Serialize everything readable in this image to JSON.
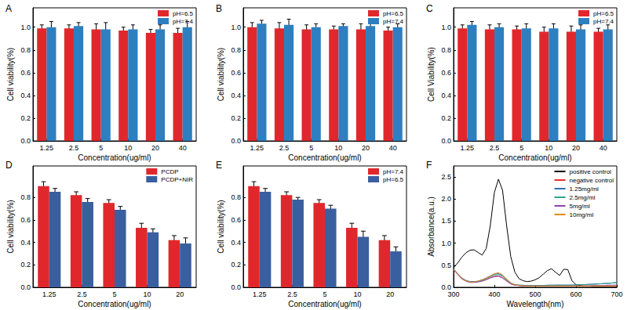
{
  "chart_data": [
    {
      "type": "bar",
      "title": "A",
      "x_label": "Concentration(ug/ml)",
      "y_label": "Cell viability(%)",
      "categories": [
        "1.25",
        "2.5",
        "5",
        "10",
        "20",
        "40"
      ],
      "series": [
        {
          "name": "pH=6.5",
          "color": "#e0282c",
          "values": [
            0.99,
            0.99,
            0.98,
            0.97,
            0.95,
            0.95
          ],
          "errors": [
            0.03,
            0.03,
            0.05,
            0.03,
            0.03,
            0.04
          ]
        },
        {
          "name": "pH=7.4",
          "color": "#2e7fc0",
          "values": [
            1.0,
            1.01,
            0.98,
            0.98,
            0.98,
            1.0
          ],
          "errors": [
            0.05,
            0.03,
            0.06,
            0.04,
            0.04,
            0.05
          ]
        }
      ],
      "ylim": [
        0,
        1.17
      ],
      "yticks": [
        {
          "value": 0,
          "label": "0.0"
        },
        0.2,
        0.4,
        0.6,
        0.8,
        {
          "value": 1,
          "label": "1.0"
        }
      ],
      "grid": false,
      "legend": "upper right"
    },
    {
      "type": "bar",
      "title": "B",
      "x_label": "Concentration(ug/ml)",
      "y_label": "Cell viability(%)",
      "categories": [
        "1.25",
        "2.5",
        "5",
        "10",
        "20",
        "40"
      ],
      "series": [
        {
          "name": "pH=6.5",
          "color": "#e0282c",
          "values": [
            1.0,
            0.99,
            0.98,
            0.98,
            0.98,
            0.97
          ],
          "errors": [
            0.04,
            0.05,
            0.04,
            0.03,
            0.05,
            0.03
          ]
        },
        {
          "name": "pH=7.4",
          "color": "#2e7fc0",
          "values": [
            1.03,
            1.02,
            1.0,
            1.01,
            1.01,
            1.0
          ],
          "errors": [
            0.03,
            0.05,
            0.03,
            0.02,
            0.03,
            0.03
          ]
        }
      ],
      "ylim": [
        0,
        1.17
      ],
      "yticks": [
        {
          "value": 0,
          "label": "0.0"
        },
        0.2,
        0.4,
        0.6,
        0.8,
        {
          "value": 1,
          "label": "1.0"
        }
      ],
      "grid": false,
      "legend": "upper right"
    },
    {
      "type": "bar",
      "title": "C",
      "x_label": "Concentration(ug/ml)",
      "y_label": "Cell Viability(%)",
      "categories": [
        "1.25",
        "2.5",
        "5",
        "10",
        "20",
        "40"
      ],
      "series": [
        {
          "name": "pH=6.5",
          "color": "#e0282c",
          "values": [
            0.99,
            0.98,
            0.98,
            0.96,
            0.96,
            0.96
          ],
          "errors": [
            0.03,
            0.04,
            0.03,
            0.04,
            0.05,
            0.03
          ]
        },
        {
          "name": "pH=7.4",
          "color": "#2e7fc0",
          "values": [
            1.02,
            1.0,
            0.99,
            0.99,
            0.98,
            0.98
          ],
          "errors": [
            0.03,
            0.03,
            0.04,
            0.04,
            0.04,
            0.04
          ]
        }
      ],
      "ylim": [
        0,
        1.17
      ],
      "yticks": [
        {
          "value": 0,
          "label": "0.0"
        },
        0.2,
        0.4,
        0.6,
        0.8,
        {
          "value": 1,
          "label": "1.0"
        }
      ],
      "grid": false,
      "legend": "upper right"
    },
    {
      "type": "bar",
      "title": "D",
      "x_label": "Concentration(ug/ml)",
      "y_label": "Cell viability(%)",
      "categories": [
        "1.25",
        "2.5",
        "5",
        "10",
        "20"
      ],
      "series": [
        {
          "name": "PCDP",
          "color": "#e0282c",
          "values": [
            0.9,
            0.82,
            0.75,
            0.53,
            0.42
          ],
          "errors": [
            0.04,
            0.03,
            0.03,
            0.04,
            0.04
          ]
        },
        {
          "name": "PCDP+NIR",
          "color": "#3a5f9e",
          "values": [
            0.85,
            0.76,
            0.69,
            0.49,
            0.39
          ],
          "errors": [
            0.03,
            0.03,
            0.03,
            0.03,
            0.05
          ]
        }
      ],
      "ylim": [
        0,
        1.08
      ],
      "yticks": [
        {
          "value": 0,
          "label": "0.0"
        },
        0.2,
        0.4,
        0.6,
        0.8
      ],
      "grid": false,
      "legend": "upper right"
    },
    {
      "type": "bar",
      "title": "E",
      "x_label": "Concentration(ug/ml)",
      "y_label": "Cell viability(%)",
      "categories": [
        "1.25",
        "2.5",
        "5",
        "10",
        "20"
      ],
      "series": [
        {
          "name": "pH=7.4",
          "color": "#e0282c",
          "values": [
            0.9,
            0.82,
            0.75,
            0.53,
            0.42
          ],
          "errors": [
            0.04,
            0.03,
            0.03,
            0.04,
            0.04
          ]
        },
        {
          "name": "pH=6.5",
          "color": "#3a5f9e",
          "values": [
            0.85,
            0.78,
            0.7,
            0.45,
            0.32
          ],
          "errors": [
            0.03,
            0.02,
            0.03,
            0.05,
            0.04
          ]
        }
      ],
      "ylim": [
        0,
        1.08
      ],
      "yticks": [
        {
          "value": 0,
          "label": "0.0"
        },
        0.2,
        0.4,
        0.6,
        0.8
      ],
      "grid": false,
      "legend": "upper right"
    },
    {
      "type": "line",
      "title": "F",
      "x_label": "Wavelength(nm)",
      "y_label": "Absorbance(a.u.)",
      "x": [
        300,
        310,
        320,
        330,
        340,
        350,
        360,
        370,
        380,
        390,
        400,
        410,
        420,
        430,
        440,
        450,
        460,
        470,
        480,
        490,
        500,
        510,
        520,
        530,
        540,
        550,
        560,
        570,
        580,
        590,
        600,
        610,
        620,
        630,
        640,
        650,
        660,
        670,
        680,
        690,
        700
      ],
      "series": [
        {
          "name": "positive control",
          "color": "#000000",
          "values": [
            0.45,
            0.55,
            0.68,
            0.78,
            0.84,
            0.85,
            0.79,
            0.73,
            0.88,
            1.4,
            2.15,
            2.45,
            2.2,
            1.4,
            0.7,
            0.35,
            0.2,
            0.15,
            0.13,
            0.14,
            0.17,
            0.22,
            0.3,
            0.38,
            0.42,
            0.34,
            0.27,
            0.41,
            0.4,
            0.15,
            0.06,
            0.04,
            0.03,
            0.03,
            0.02,
            0.02,
            0.02,
            0.02,
            0.02,
            0.02,
            0.02
          ]
        },
        {
          "name": "negative control",
          "color": "#e8302c",
          "values": [
            0.4,
            0.3,
            0.21,
            0.15,
            0.12,
            0.12,
            0.13,
            0.15,
            0.18,
            0.22,
            0.25,
            0.26,
            0.22,
            0.15,
            0.08,
            0.05,
            0.04,
            0.03,
            0.03,
            0.03,
            0.03,
            0.03,
            0.03,
            0.03,
            0.03,
            0.03,
            0.03,
            0.03,
            0.03,
            0.03,
            0.03,
            0.03,
            0.03,
            0.03,
            0.03,
            0.03,
            0.03,
            0.03,
            0.03,
            0.03,
            0.03
          ]
        },
        {
          "name": "1.25mg/ml",
          "color": "#2f6fb5",
          "values": [
            0.42,
            0.31,
            0.21,
            0.16,
            0.13,
            0.13,
            0.14,
            0.17,
            0.21,
            0.26,
            0.3,
            0.31,
            0.27,
            0.18,
            0.1,
            0.06,
            0.05,
            0.05,
            0.04,
            0.04,
            0.04,
            0.04,
            0.04,
            0.05,
            0.05,
            0.05,
            0.05,
            0.05,
            0.05,
            0.05,
            0.06,
            0.06,
            0.06,
            0.07,
            0.07,
            0.08,
            0.08,
            0.09,
            0.09,
            0.1,
            0.11
          ]
        },
        {
          "name": "2.5mg/ml",
          "color": "#2ca58d",
          "values": [
            0.41,
            0.3,
            0.2,
            0.15,
            0.12,
            0.12,
            0.13,
            0.16,
            0.2,
            0.24,
            0.28,
            0.29,
            0.25,
            0.17,
            0.09,
            0.06,
            0.05,
            0.04,
            0.04,
            0.04,
            0.04,
            0.04,
            0.04,
            0.04,
            0.04,
            0.05,
            0.05,
            0.05,
            0.05,
            0.05,
            0.05,
            0.06,
            0.06,
            0.06,
            0.07,
            0.07,
            0.08,
            0.08,
            0.09,
            0.1,
            0.11
          ]
        },
        {
          "name": "5mg/ml",
          "color": "#8e44ad",
          "values": [
            0.4,
            0.29,
            0.19,
            0.14,
            0.11,
            0.11,
            0.12,
            0.14,
            0.17,
            0.21,
            0.24,
            0.25,
            0.21,
            0.14,
            0.08,
            0.05,
            0.04,
            0.03,
            0.03,
            0.03,
            0.03,
            0.03,
            0.03,
            0.03,
            0.03,
            0.03,
            0.03,
            0.03,
            0.03,
            0.03,
            0.03,
            0.03,
            0.03,
            0.03,
            0.04,
            0.04,
            0.04,
            0.04,
            0.05,
            0.05,
            0.05
          ]
        },
        {
          "name": "10mg/ml",
          "color": "#e08a1e",
          "values": [
            0.41,
            0.3,
            0.2,
            0.15,
            0.12,
            0.12,
            0.14,
            0.17,
            0.21,
            0.26,
            0.31,
            0.33,
            0.28,
            0.19,
            0.1,
            0.06,
            0.04,
            0.04,
            0.03,
            0.03,
            0.03,
            0.03,
            0.03,
            0.03,
            0.03,
            0.03,
            0.03,
            0.03,
            0.03,
            0.03,
            0.03,
            0.03,
            0.03,
            0.03,
            0.03,
            0.03,
            0.03,
            0.03,
            0.03,
            0.03,
            0.03
          ]
        }
      ],
      "xlim": [
        300,
        700
      ],
      "xticks": [
        300,
        400,
        500,
        600,
        700
      ],
      "ylim": [
        0,
        2.75
      ],
      "yticks": [
        {
          "value": 0,
          "label": "0.0"
        },
        0.5,
        {
          "value": 1,
          "label": "1.0"
        },
        1.5,
        {
          "value": 2,
          "label": "2.0"
        },
        2.5
      ],
      "grid": false,
      "legend": "upper right"
    }
  ]
}
